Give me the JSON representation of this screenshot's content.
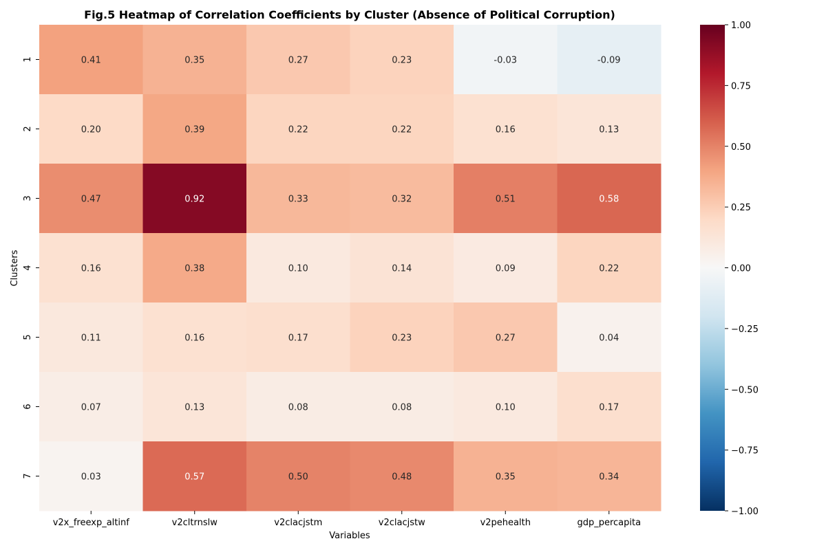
{
  "chart_data": {
    "type": "heatmap",
    "title": "Fig.5 Heatmap of Correlation Coefficients by Cluster (Absence of Political Corruption)",
    "xlabel": "Variables",
    "ylabel": "Clusters",
    "columns": [
      "v2x_freexp_altinf",
      "v2cltrnslw",
      "v2clacjstm",
      "v2clacjstw",
      "v2pehealth",
      "gdp_percapita"
    ],
    "rows": [
      "1",
      "2",
      "3",
      "4",
      "5",
      "6",
      "7"
    ],
    "values": [
      [
        0.41,
        0.35,
        0.27,
        0.23,
        -0.03,
        -0.09
      ],
      [
        0.2,
        0.39,
        0.22,
        0.22,
        0.16,
        0.13
      ],
      [
        0.47,
        0.92,
        0.33,
        0.32,
        0.51,
        0.58
      ],
      [
        0.16,
        0.38,
        0.1,
        0.14,
        0.09,
        0.22
      ],
      [
        0.11,
        0.16,
        0.17,
        0.23,
        0.27,
        0.04
      ],
      [
        0.07,
        0.13,
        0.08,
        0.08,
        0.1,
        0.17
      ],
      [
        0.03,
        0.57,
        0.5,
        0.48,
        0.35,
        0.34
      ]
    ],
    "value_format_decimals": 2,
    "colormap": "RdBu_r",
    "vmin": -1,
    "vmax": 1,
    "colorbar_ticks": [
      1.0,
      0.75,
      0.5,
      0.25,
      0.0,
      -0.25,
      -0.5,
      -0.75,
      -1.0
    ],
    "colorbar_tick_labels": [
      "1.00",
      "0.75",
      "0.50",
      "0.25",
      "0.00",
      "−0.25",
      "−0.50",
      "−0.75",
      "−1.00"
    ],
    "grid": false,
    "legend": "colorbar-right"
  }
}
